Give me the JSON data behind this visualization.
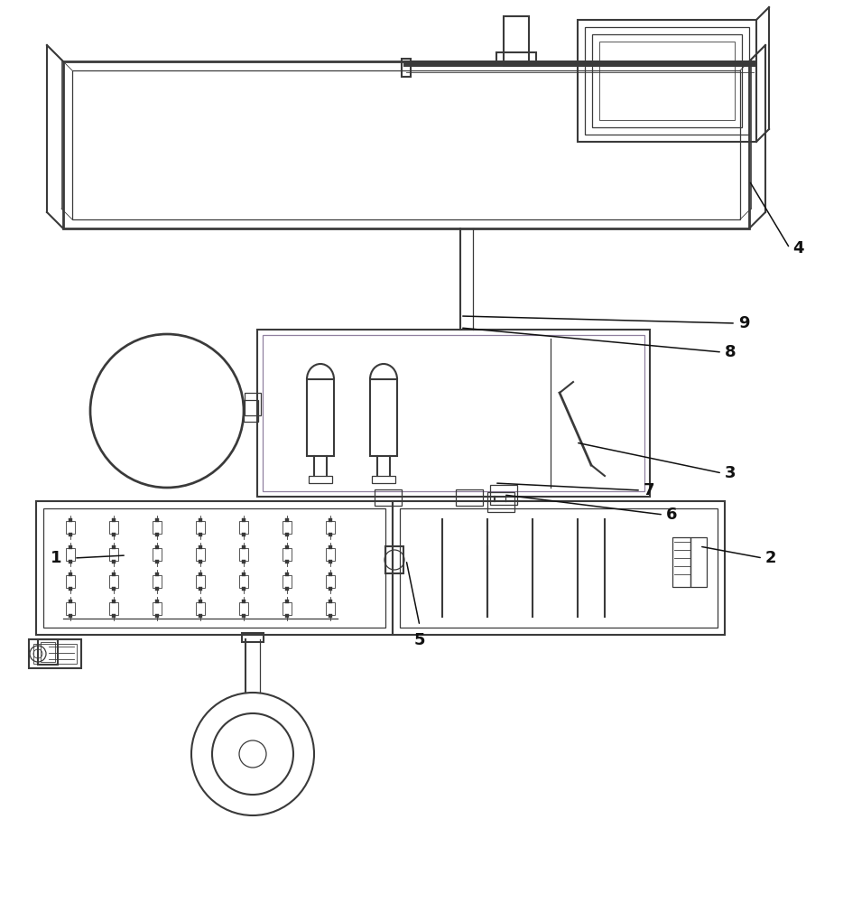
{
  "bg_color": "#ffffff",
  "lc": "#3a3a3a",
  "lc_purple": "#9080a0",
  "lw_heavy": 2.0,
  "lw_mid": 1.5,
  "lw_thin": 0.9,
  "lw_vt": 0.6,
  "label_fs": 13,
  "label_color": "#111111"
}
